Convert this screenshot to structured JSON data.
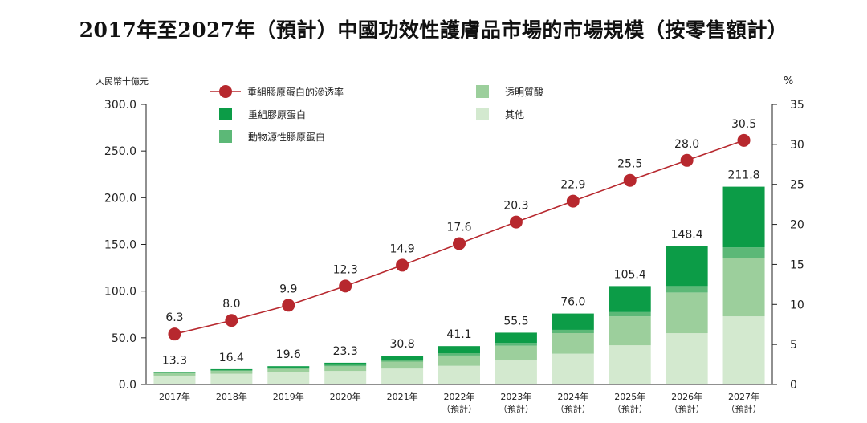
{
  "chart_data": {
    "type": "bar",
    "title": "2017年至2027年（預計）中國功效性護膚品市場的市場規模（按零售額計）",
    "left_unit": "人民幣十億元",
    "right_unit": "%",
    "ylim_left": [
      0,
      300
    ],
    "ylim_right": [
      0,
      35
    ],
    "left_ticks": [
      "0.0",
      "50.0",
      "100.0",
      "150.0",
      "200.0",
      "250.0",
      "300.0"
    ],
    "right_ticks": [
      "0",
      "5",
      "10",
      "15",
      "20",
      "25",
      "30",
      "35"
    ],
    "categories": [
      [
        "2017年",
        ""
      ],
      [
        "2018年",
        ""
      ],
      [
        "2019年",
        ""
      ],
      [
        "2020年",
        ""
      ],
      [
        "2021年",
        ""
      ],
      [
        "2022年",
        "（預計）"
      ],
      [
        "2023年",
        "（預計）"
      ],
      [
        "2024年",
        "（預計）"
      ],
      [
        "2025年",
        "（預計）"
      ],
      [
        "2026年",
        "（預計）"
      ],
      [
        "2027年",
        "（預計）"
      ]
    ],
    "totals": [
      "13.3",
      "16.4",
      "19.6",
      "23.3",
      "30.8",
      "41.1",
      "55.5",
      "76.0",
      "105.4",
      "148.4",
      "211.8"
    ],
    "series": [
      {
        "name": "其他",
        "color": "#d3e9cf",
        "values": [
          9.5,
          11.5,
          13.0,
          14.5,
          17.0,
          20.0,
          26.0,
          33.0,
          42.0,
          55.0,
          73.0
        ]
      },
      {
        "name": "透明質酸",
        "color": "#9ccf9c",
        "values": [
          2.5,
          3.0,
          3.8,
          5.0,
          7.5,
          11.0,
          15.5,
          22.0,
          31.0,
          43.5,
          62.0
        ]
      },
      {
        "name": "動物源性膠原蛋白",
        "color": "#5cb877",
        "values": [
          0.8,
          1.0,
          1.3,
          1.5,
          2.0,
          2.5,
          3.0,
          3.5,
          4.5,
          6.9,
          11.8
        ]
      },
      {
        "name": "重組膠原蛋白",
        "color": "#0c9c47",
        "values": [
          0.5,
          0.9,
          1.5,
          2.3,
          4.3,
          7.6,
          11.0,
          17.5,
          27.9,
          43.0,
          65.0
        ]
      }
    ],
    "line": {
      "name": "重組膠原蛋白的滲透率",
      "color": "#b7282e",
      "values": [
        6.3,
        8.0,
        9.9,
        12.3,
        14.9,
        17.6,
        20.3,
        22.9,
        25.5,
        28.0,
        30.5
      ],
      "labels": [
        "6.3",
        "8.0",
        "9.9",
        "12.3",
        "14.9",
        "17.6",
        "20.3",
        "22.9",
        "25.5",
        "28.0",
        "30.5"
      ]
    },
    "legend_placement": "top-left",
    "grid": false
  }
}
